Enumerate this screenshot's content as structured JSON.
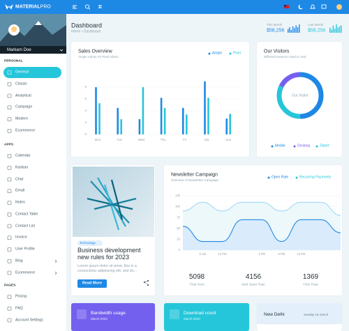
{
  "topbar": {
    "brand": "MATERIAL",
    "brand_suffix": "PRO"
  },
  "header_stats": [
    {
      "label": "This Month",
      "value": "$58,256",
      "bars": [
        4,
        6,
        3,
        7,
        5,
        8,
        6,
        9
      ]
    },
    {
      "label": "Last Month",
      "value": "$58,256",
      "bars": [
        5,
        3,
        7,
        4,
        8,
        5,
        6,
        7
      ]
    }
  ],
  "sidebar": {
    "profile_name": "Markarn Doe",
    "sections": [
      {
        "title": "PERSONAL",
        "items": [
          "General",
          "Classic",
          "Analytical",
          "Campaign",
          "Modern",
          "Ecommerce"
        ]
      },
      {
        "title": "APPS",
        "items": [
          "Calendar",
          "Kanban",
          "Chat",
          "Email",
          "Notes",
          "Contact Table",
          "Contact List",
          "Invoice",
          "User Profile",
          "Blog",
          "Ecommerce"
        ]
      },
      {
        "title": "PAGES",
        "items": [
          "Pricing",
          "FAQ",
          "Account Settings"
        ]
      }
    ]
  },
  "page": {
    "title": "Dashboard",
    "breadcrumb": [
      "Home",
      "Dashboard"
    ]
  },
  "chart_data": [
    {
      "type": "bar",
      "title": "Sales Overview",
      "subtitle": "Ample Admin Vs Pixel Admin",
      "categories": [
        "Mon",
        "Tue",
        "Wed",
        "Thu",
        "Fri",
        "Sat",
        "Sun"
      ],
      "series": [
        {
          "name": "Ample",
          "color": "#1e88e5",
          "values": [
            8,
            4.5,
            2.6,
            6.2,
            4.5,
            9,
            2.7
          ]
        },
        {
          "name": "Pixel",
          "color": "#26c6da",
          "values": [
            5.3,
            2.6,
            8,
            4.5,
            3.4,
            6.2,
            3.5
          ]
        }
      ],
      "ylim": [
        0,
        10
      ],
      "yticks": [
        0,
        2,
        4,
        6,
        8
      ],
      "grid": true
    },
    {
      "type": "donut",
      "title": "Our Visitors",
      "subtitle": "Different Devices Used to Visit",
      "center_label": "Our Visitor",
      "categories": [
        "Mobile",
        "Desktop",
        "Tablet"
      ],
      "values": [
        50,
        18,
        32
      ],
      "colors": [
        "#1e88e5",
        "#7460ee",
        "#26c6da"
      ]
    },
    {
      "type": "area",
      "title": "Newsletter Campaign",
      "subtitle": "Overview of Newsletter Campaign",
      "categories": [
        null,
        "6 AM",
        "12 PM",
        null,
        "4 PM",
        "8 PM",
        "12 PM",
        null,
        null
      ],
      "series": [
        {
          "name": "Open Rate",
          "color": "#1e88e5",
          "values": [
            55,
            20,
            20,
            70,
            70,
            20,
            70,
            70,
            40
          ]
        },
        {
          "name": "Recurring Payments",
          "color": "#26c6da",
          "values": [
            90,
            110,
            90,
            110,
            110,
            90,
            110,
            110,
            80
          ]
        }
      ],
      "ylim": [
        0,
        125
      ],
      "yticks": [
        0,
        25,
        50,
        75,
        100,
        125
      ],
      "grid": true
    }
  ],
  "newsletter_stats": [
    {
      "value": 5098,
      "label": "Total Sent"
    },
    {
      "value": 4156,
      "label": "Mail Open Rate"
    },
    {
      "value": 1369,
      "label": "Click Rate"
    }
  ],
  "blog": {
    "tag": "Technology",
    "title": "Business development new rules for 2023",
    "text": "Lorem ipsum dolor sit amet, this is a consectetur adipisicing elit, sed do...",
    "button": "Read More"
  },
  "widgets": [
    {
      "title": "Bandwidth usage",
      "subtitle": "March 2023"
    },
    {
      "title": "Download count",
      "subtitle": "March 2023"
    }
  ],
  "weather": {
    "city": "New Delhi",
    "date": "Sunday 15 march"
  }
}
